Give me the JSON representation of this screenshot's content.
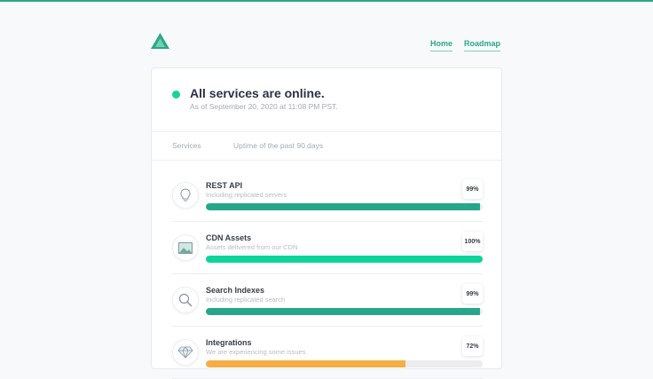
{
  "header": {
    "home_label": "Home",
    "roadmap_label": "Roadmap",
    "accent": "#2aa88a"
  },
  "status": {
    "title": "All services are online.",
    "subtitle": "As of September 20, 2020 at 11:08 PM PST.",
    "color": "#15d39a"
  },
  "columns": {
    "services": "Services",
    "uptime": "Uptime of the past 90 days"
  },
  "services": [
    {
      "name": "REST API",
      "desc": "Including replicated servers",
      "uptime": "99%",
      "percent": 99,
      "color": "#26a68a",
      "icon": "lightbulb-icon"
    },
    {
      "name": "CDN Assets",
      "desc": "Assets delivered from our CDN",
      "uptime": "100%",
      "percent": 100,
      "color": "#0fd39c",
      "icon": "image-icon"
    },
    {
      "name": "Search Indexes",
      "desc": "Including replicated search",
      "uptime": "99%",
      "percent": 99,
      "color": "#26a68a",
      "icon": "search-icon"
    },
    {
      "name": "Integrations",
      "desc": "We are experiencing some issues",
      "uptime": "72%",
      "percent": 72,
      "color": "#f5ad45",
      "icon": "diamond-icon"
    }
  ]
}
